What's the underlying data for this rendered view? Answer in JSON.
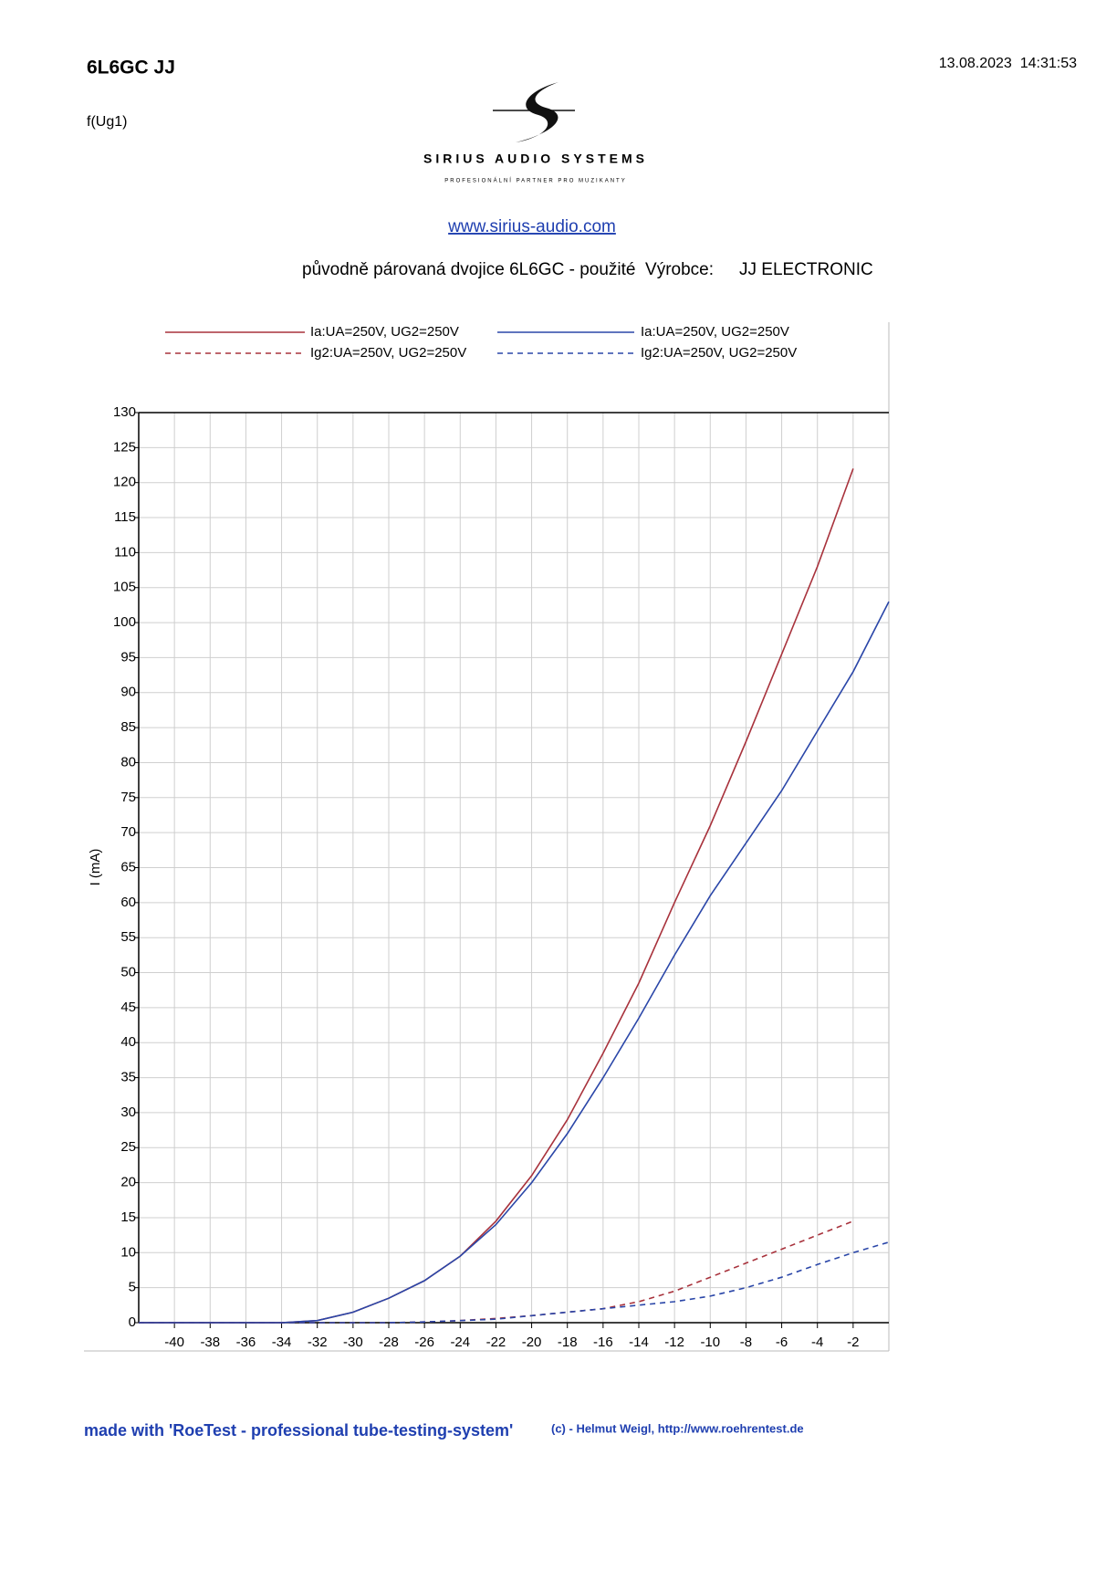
{
  "header": {
    "title": "6L6GC JJ",
    "subtitle": "f(Ug1)",
    "timestamp": "13.08.2023  14:31:53",
    "logo_name": "SIRIUS AUDIO SYSTEMS",
    "logo_tagline": "PROFESIONÁLNÍ PARTNER PRO MUZIKANTY",
    "link": "www.sirius-audio.com",
    "description": "původně párovaná dvojice 6L6GC - použité  Výrobce:",
    "manufacturer": "JJ ELECTRONIC"
  },
  "chart_data": {
    "type": "line",
    "y_label": "I (mA)",
    "x": [
      -42,
      -40,
      -38,
      -36,
      -34,
      -32,
      -30,
      -28,
      -26,
      -24,
      -22,
      -20,
      -18,
      -16,
      -14,
      -12,
      -10,
      -8,
      -6,
      -4,
      -2,
      0
    ],
    "series": [
      {
        "name": "Ia:UA=250V, UG2=250V",
        "color": "#a8323c",
        "dash": false,
        "values": [
          0,
          0,
          0,
          0,
          0,
          0.3,
          1.5,
          3.5,
          6,
          9.5,
          14.5,
          21,
          29,
          38.5,
          48.5,
          60,
          71,
          83,
          95.5,
          108,
          122,
          null
        ]
      },
      {
        "name": "Ia:UA=250V, UG2=250V",
        "color": "#2a46a8",
        "dash": false,
        "values": [
          0,
          0,
          0,
          0,
          0,
          0.3,
          1.5,
          3.5,
          6,
          9.5,
          14,
          20,
          27,
          35,
          43.5,
          52.5,
          61,
          68.5,
          76,
          84.5,
          93,
          103
        ]
      },
      {
        "name": "Ig2:UA=250V, UG2=250V",
        "color": "#a8323c",
        "dash": true,
        "values": [
          0,
          0,
          0,
          0,
          0,
          0,
          0,
          0,
          0.1,
          0.3,
          0.6,
          1,
          1.5,
          2,
          3,
          4.5,
          6.5,
          8.5,
          10.5,
          12.5,
          14.5,
          null
        ]
      },
      {
        "name": "Ig2:UA=250V, UG2=250V",
        "color": "#2a46a8",
        "dash": true,
        "values": [
          0,
          0,
          0,
          0,
          0,
          0,
          0,
          0,
          0.1,
          0.3,
          0.5,
          1,
          1.5,
          2,
          2.5,
          3,
          3.8,
          5,
          6.5,
          8.3,
          10,
          11.5
        ]
      }
    ],
    "xlim": [
      -42,
      0
    ],
    "ylim": [
      0,
      130
    ],
    "xticks": [
      -40,
      -38,
      -36,
      -34,
      -32,
      -30,
      -28,
      -26,
      -24,
      -22,
      -20,
      -18,
      -16,
      -14,
      -12,
      -10,
      -8,
      -6,
      -4,
      -2
    ],
    "yticks": [
      0,
      5,
      10,
      15,
      20,
      25,
      30,
      35,
      40,
      45,
      50,
      55,
      60,
      65,
      70,
      75,
      80,
      85,
      90,
      95,
      100,
      105,
      110,
      115,
      120,
      125,
      130
    ],
    "grid": true
  },
  "footer": {
    "made_with": "made with 'RoeTest - professional tube-testing-system'",
    "credit": "(c) - Helmut Weigl, http://www.roehrentest.de"
  }
}
